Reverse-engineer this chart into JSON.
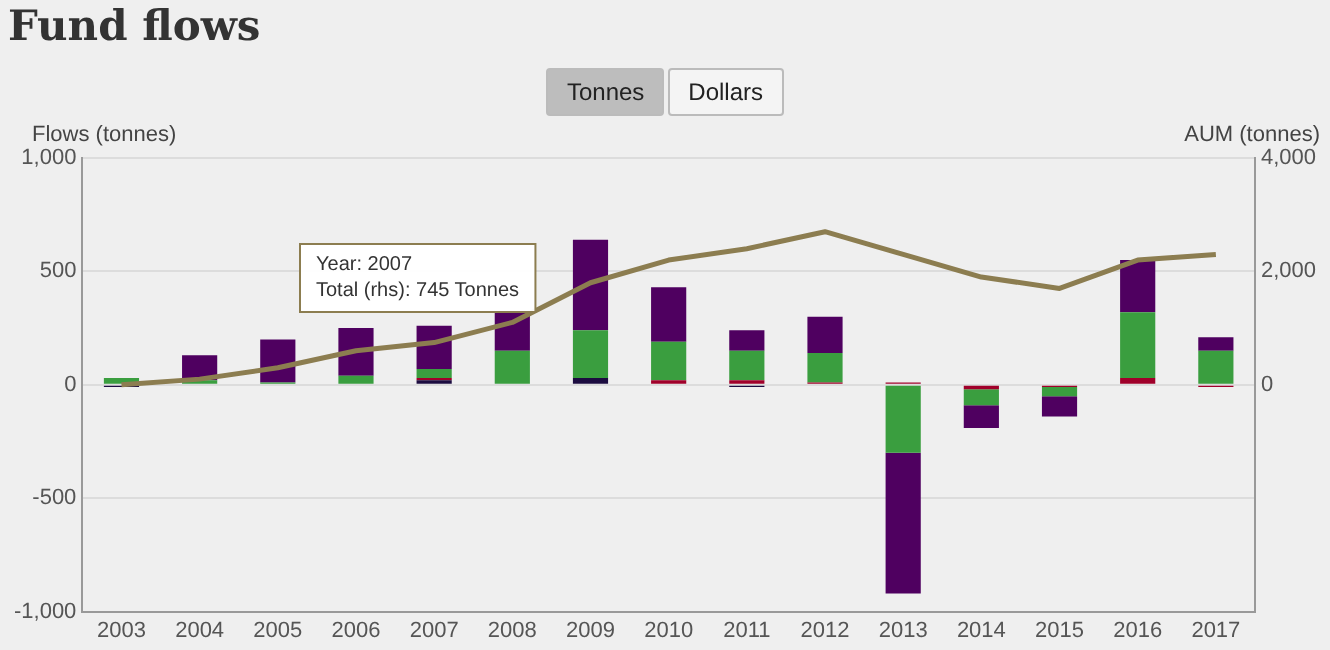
{
  "chart_data": {
    "type": "bar",
    "title": "Fund flows",
    "ylabel": "Flows (tonnes)",
    "y2label": "AUM (tonnes)",
    "categories": [
      "2003",
      "2004",
      "2005",
      "2006",
      "2007",
      "2008",
      "2009",
      "2010",
      "2011",
      "2012",
      "2013",
      "2014",
      "2015",
      "2016",
      "2017"
    ],
    "series": [
      {
        "color": "#1c0c40",
        "values": [
          -10,
          null,
          null,
          null,
          20,
          null,
          30,
          null,
          -10,
          null,
          null,
          null,
          null,
          null,
          null
        ]
      },
      {
        "color": "#a0002a",
        "values": [
          null,
          null,
          null,
          null,
          10,
          null,
          null,
          20,
          20,
          10,
          10,
          -20,
          -10,
          30,
          -10
        ]
      },
      {
        "color": "#3a9e3f",
        "values": [
          30,
          20,
          10,
          40,
          40,
          150,
          210,
          170,
          130,
          130,
          -300,
          -70,
          -40,
          290,
          150
        ]
      },
      {
        "color": "#4f0060",
        "values": [
          null,
          110,
          190,
          210,
          190,
          170,
          400,
          240,
          90,
          160,
          -620,
          -100,
          -90,
          230,
          60
        ]
      },
      {
        "type": "line",
        "axis": "y2",
        "color": "#8c7d50",
        "values": [
          0,
          100,
          300,
          600,
          745,
          1100,
          1800,
          2200,
          2400,
          2700,
          2300,
          1900,
          1700,
          2200,
          2300
        ]
      }
    ],
    "stacked": true,
    "ylim": [
      -1000,
      1000
    ],
    "yticks": [
      {
        "value": -1000,
        "label": "-1,000"
      },
      -500,
      0,
      500,
      {
        "value": 1000,
        "label": "1,000"
      }
    ],
    "y2lim": [
      -4000,
      4000
    ],
    "y2ticks": [
      0,
      {
        "value": 2000,
        "label": "2,000"
      },
      {
        "value": 4000,
        "label": "4,000"
      }
    ],
    "annotations": [
      "Tonnes",
      "Dollars",
      "Year: 2007\nTotal (rhs): 745 Tonnes"
    ],
    "grid": "y",
    "legend": false,
    "marker": "none",
    "line_style": "solid"
  }
}
